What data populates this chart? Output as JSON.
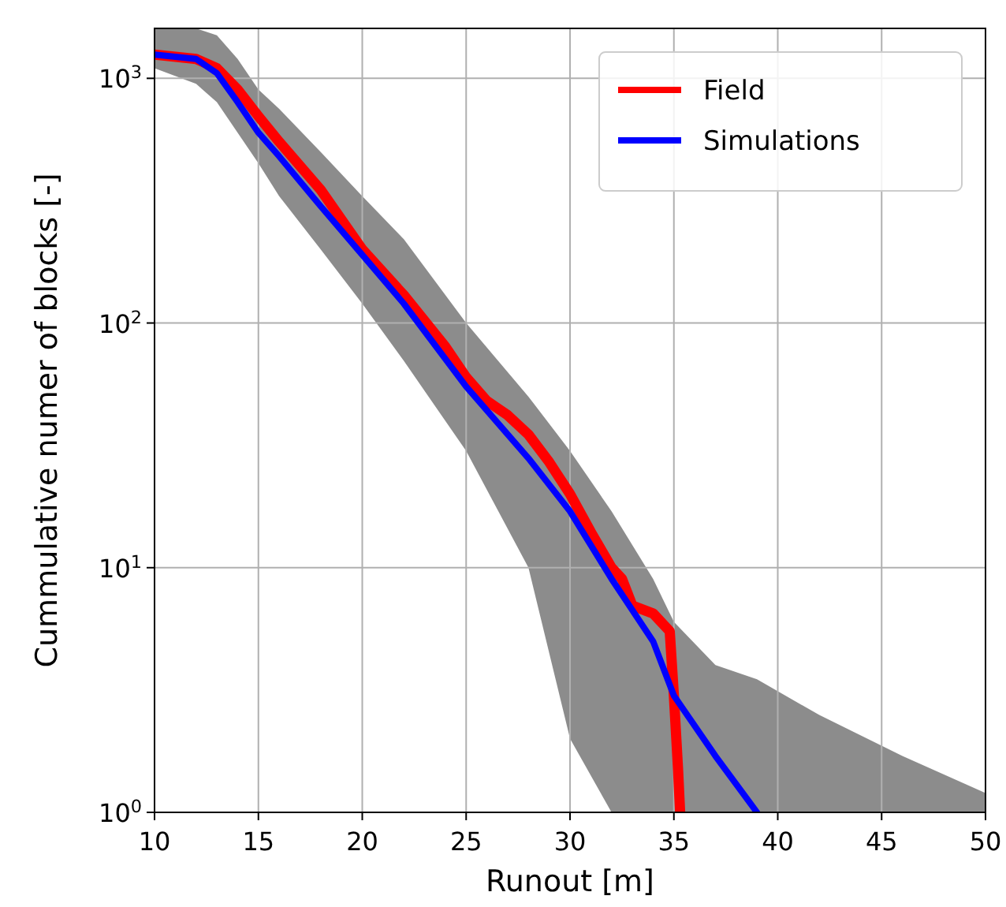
{
  "chart_data": {
    "type": "line",
    "xlabel": "Runout [m]",
    "ylabel": "Cummulative numer of blocks [-]",
    "log": "y",
    "grid": true,
    "legend": "top right",
    "line_style": "solid",
    "marker": "none",
    "xlim": [
      10,
      50
    ],
    "xticks": [
      10,
      15,
      20,
      25,
      30,
      35,
      40,
      45,
      50
    ],
    "ylim": [
      1,
      1600
    ],
    "yticks": [
      {
        "value": 1,
        "label": "10$^{0}$"
      },
      {
        "value": 10,
        "label": "10$^{1}$"
      },
      {
        "value": 100,
        "label": "10$^{2}$"
      },
      {
        "value": 1000,
        "label": "10$^{3}$"
      }
    ],
    "series": [
      {
        "name": "Field",
        "color": "#ff0000",
        "x": [
          10,
          12,
          13,
          14,
          15,
          16,
          18,
          20,
          22,
          24,
          25,
          26,
          27,
          28,
          29,
          30,
          31,
          32,
          32.5,
          33,
          34,
          34.8,
          35,
          35.2,
          35.3
        ],
        "values": [
          1250,
          1200,
          1100,
          900,
          700,
          550,
          350,
          200,
          130,
          80,
          60,
          48,
          42,
          35,
          27,
          20,
          14,
          10,
          9,
          7,
          6.5,
          5.5,
          3,
          1.5,
          1
        ]
      },
      {
        "name": "Simulations",
        "color": "#0000ff",
        "x": [
          10,
          12,
          13,
          14,
          15,
          16,
          18,
          20,
          22,
          25,
          28,
          30,
          32,
          34,
          35,
          37,
          39,
          42,
          46,
          50
        ],
        "values": [
          1250,
          1200,
          1050,
          800,
          600,
          480,
          300,
          190,
          120,
          55,
          28,
          17,
          9,
          5,
          3,
          1.7,
          1,
          null,
          null,
          null
        ],
        "lower": [
          1100,
          950,
          800,
          600,
          450,
          330,
          200,
          120,
          70,
          30,
          10,
          2,
          1,
          1,
          1,
          1,
          1,
          1,
          1,
          1
        ],
        "upper": [
          1600,
          1600,
          1500,
          1200,
          900,
          750,
          500,
          330,
          220,
          100,
          50,
          30,
          17,
          9,
          6,
          4,
          3.5,
          2.5,
          1.7,
          1.2
        ]
      }
    ]
  }
}
